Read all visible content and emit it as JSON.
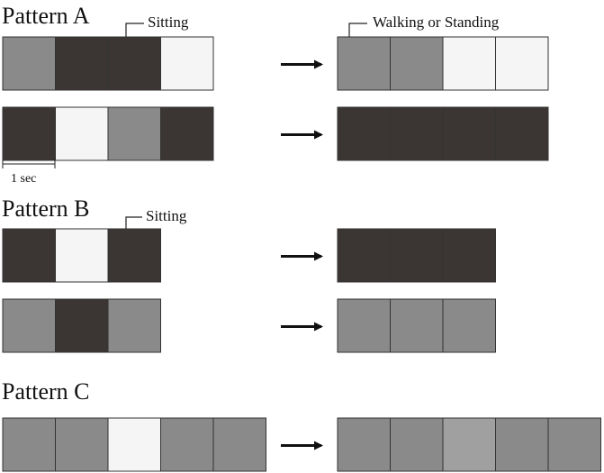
{
  "colors": {
    "sitting": "#3b3634",
    "walking_standing": "#8a8a8a",
    "light": "#f5f5f5",
    "mid": "#a0a0a0"
  },
  "pattern_a": {
    "title": "Pattern A",
    "callout_left": "Sitting",
    "callout_right": "Walking or Standing",
    "scale_label": "1 sec",
    "rows": [
      {
        "before": [
          "walking_standing",
          "sitting",
          "sitting",
          "light"
        ],
        "after": [
          "walking_standing",
          "walking_standing",
          "light",
          "light"
        ]
      },
      {
        "before": [
          "sitting",
          "light",
          "walking_standing",
          "sitting"
        ],
        "after": [
          "sitting",
          "sitting",
          "sitting",
          "sitting"
        ]
      }
    ]
  },
  "pattern_b": {
    "title": "Pattern B",
    "callout_left": "Sitting",
    "rows": [
      {
        "before": [
          "sitting",
          "light",
          "sitting"
        ],
        "after": [
          "sitting",
          "sitting",
          "sitting"
        ]
      },
      {
        "before": [
          "walking_standing",
          "sitting",
          "walking_standing"
        ],
        "after": [
          "walking_standing",
          "walking_standing",
          "walking_standing"
        ]
      }
    ]
  },
  "pattern_c": {
    "title": "Pattern C",
    "rows": [
      {
        "before": [
          "walking_standing",
          "walking_standing",
          "light",
          "walking_standing",
          "walking_standing"
        ],
        "after": [
          "walking_standing",
          "walking_standing",
          "mid",
          "walking_standing",
          "walking_standing"
        ]
      }
    ]
  },
  "arrow_symbol": "⟶"
}
